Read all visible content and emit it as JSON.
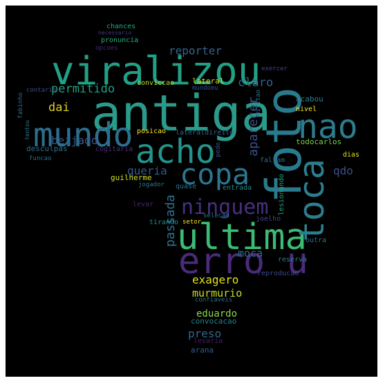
{
  "wordcloud": {
    "background": "#000000",
    "words": [
      {
        "text": "antiga",
        "color": "#2a9b8a"
      },
      {
        "text": "foto",
        "color": "#2a7a8e"
      },
      {
        "text": "viralizou",
        "color": "#22a085"
      },
      {
        "text": "ultima",
        "color": "#3bbb75"
      },
      {
        "text": "erro u",
        "color": "#4a2b7a"
      },
      {
        "text": "mundo",
        "color": "#2d6f8e"
      },
      {
        "text": "acho",
        "color": "#23948c"
      },
      {
        "text": "nao",
        "color": "#2b7c8e"
      },
      {
        "text": "toca",
        "color": "#2c7e8e"
      },
      {
        "text": "copa",
        "color": "#2b768e"
      },
      {
        "text": "ninguem",
        "color": "#46307e"
      },
      {
        "text": "aparecer",
        "color": "#3c4f8a"
      },
      {
        "text": "passada",
        "color": "#2c728e"
      },
      {
        "text": "reporter",
        "color": "#33638d"
      },
      {
        "text": "permitido",
        "color": "#23a184"
      },
      {
        "text": "claro",
        "color": "#33618d"
      },
      {
        "text": "dai",
        "color": "#e0d222"
      },
      {
        "text": "beijado",
        "color": "#38588c"
      },
      {
        "text": "queria",
        "color": "#38588c"
      },
      {
        "text": "qdo",
        "color": "#3b528b"
      },
      {
        "text": "moca",
        "color": "#30698e"
      },
      {
        "text": "exagero",
        "color": "#e5e419"
      },
      {
        "text": "murmurio",
        "color": "#c8e020"
      },
      {
        "text": "eduardo",
        "color": "#8fd744"
      },
      {
        "text": "preso",
        "color": "#31688e"
      },
      {
        "text": "convocacao",
        "color": "#26828e"
      },
      {
        "text": "levaria",
        "color": "#481f70"
      },
      {
        "text": "arana",
        "color": "#355e8d"
      },
      {
        "text": "todocarlos",
        "color": "#7ad151"
      },
      {
        "text": "acabou",
        "color": "#26818e"
      },
      {
        "text": "nivel",
        "color": "#fde725"
      },
      {
        "text": "dias",
        "color": "#dfe318"
      },
      {
        "text": "faltam",
        "color": "#32648e"
      },
      {
        "text": "entrada",
        "color": "#238a8d"
      },
      {
        "text": "lesionando",
        "color": "#20a386"
      },
      {
        "text": "joelho",
        "color": "#3e4989"
      },
      {
        "text": "outra",
        "color": "#2d708e"
      },
      {
        "text": "reserva",
        "color": "#26828e"
      },
      {
        "text": "reproducao",
        "color": "#3e4989"
      },
      {
        "text": "confiaveis",
        "color": "#2d718e"
      },
      {
        "text": "selecao",
        "color": "#2a788e"
      },
      {
        "text": "setor",
        "color": "#fde725"
      },
      {
        "text": "tirando",
        "color": "#228c8d"
      },
      {
        "text": "quase",
        "color": "#2b758e"
      },
      {
        "text": "lateraldireito",
        "color": "#31688e"
      },
      {
        "text": "pede",
        "color": "#3d4e8a"
      },
      {
        "text": "militao",
        "color": "#2c738e"
      },
      {
        "text": "exercer",
        "color": "#404688"
      },
      {
        "text": "mundoeu",
        "color": "#3b528b"
      },
      {
        "text": "lateral",
        "color": "#d8e219"
      },
      {
        "text": "conviccao",
        "color": "#b8de29"
      },
      {
        "text": "posicao",
        "color": "#fde725"
      },
      {
        "text": "cogitaria",
        "color": "#472d7b"
      },
      {
        "text": "guilherme",
        "color": "#d2e21b"
      },
      {
        "text": "jogador",
        "color": "#2a778e"
      },
      {
        "text": "levar",
        "color": "#482475"
      },
      {
        "text": "chances",
        "color": "#22a785"
      },
      {
        "text": "necessario",
        "color": "#443983"
      },
      {
        "text": "pronuncia",
        "color": "#29af7f"
      },
      {
        "text": "opcoes",
        "color": "#482878"
      },
      {
        "text": "contaria",
        "color": "#3e4a89"
      },
      {
        "text": "fabinho",
        "color": "#31688e"
      },
      {
        "text": "tentou",
        "color": "#26818e"
      },
      {
        "text": "desculpas",
        "color": "#2c728e"
      },
      {
        "text": "funcao",
        "color": "#2d708e"
      }
    ]
  }
}
